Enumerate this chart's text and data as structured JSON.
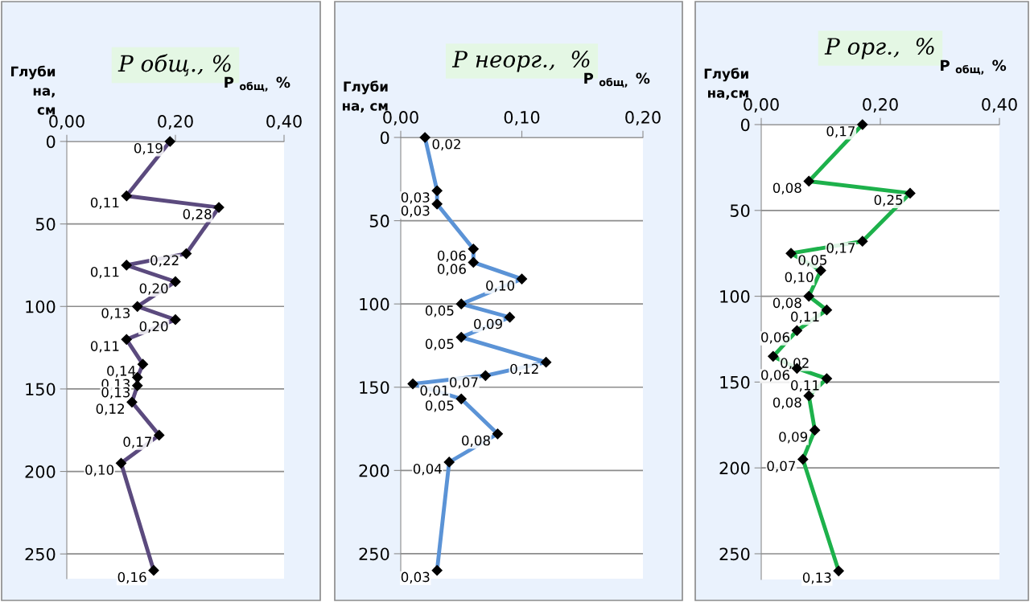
{
  "chart_data": [
    {
      "type": "line",
      "orientation": "horizontal",
      "title": "P общ., %",
      "xlabel": "P $_{общ,}$ %",
      "ylabel": "Глуби\nна,\nсм",
      "xlim": [
        0,
        0.4
      ],
      "xticks": [
        {
          "value": 0,
          "label": "0,00"
        },
        {
          "value": 0.2,
          "label": "0,20"
        },
        {
          "value": 0.4,
          "label": "0,40"
        }
      ],
      "ylim": [
        265,
        0
      ],
      "yticks": [
        0,
        50,
        100,
        150,
        200,
        250
      ],
      "grid": "y",
      "marker": "diamond",
      "line_style": "solid",
      "series": [
        {
          "color": "#5b4a7e",
          "values": [
            0.19,
            0.11,
            0.28,
            0.22,
            0.11,
            0.2,
            0.13,
            0.2,
            0.11,
            0.14,
            0.13,
            0.13,
            0.12,
            0.17,
            0.1,
            0.16
          ],
          "x": [
            0,
            33,
            40,
            68,
            75,
            85,
            100,
            108,
            120,
            135,
            143,
            148,
            158,
            178,
            195,
            260
          ],
          "value_labels": [
            "0,19",
            "0,11",
            "0,28",
            "0,22",
            "0,11",
            "0,20",
            "0,13",
            "0,20",
            "0,11",
            "0,14",
            "0,13",
            "0,13",
            "0,12",
            "0,17",
            "0,10",
            "0,16"
          ]
        }
      ]
    },
    {
      "type": "line",
      "orientation": "horizontal",
      "title": "P неорг.,  %",
      "xlabel": "P $_{общ,}$ %",
      "ylabel": "Глуби\nна, см",
      "xlim": [
        0,
        0.2
      ],
      "xticks": [
        {
          "value": 0,
          "label": "0,00"
        },
        {
          "value": 0.1,
          "label": "0,10"
        },
        {
          "value": 0.2,
          "label": "0,20"
        }
      ],
      "ylim": [
        265,
        0
      ],
      "yticks": [
        0,
        50,
        100,
        150,
        200,
        250
      ],
      "grid": "y",
      "marker": "diamond",
      "line_style": "solid",
      "series": [
        {
          "color": "#5b93d6",
          "values": [
            0.02,
            0.03,
            0.03,
            0.06,
            0.06,
            0.1,
            0.05,
            0.09,
            0.05,
            0.12,
            0.07,
            0.01,
            0.05,
            0.08,
            0.04,
            0.03
          ],
          "x": [
            0,
            32,
            40,
            67,
            75,
            85,
            100,
            108,
            120,
            135,
            143,
            148,
            157,
            178,
            195,
            260
          ],
          "value_labels": [
            "0,02",
            "0,03",
            "0,03",
            "0,06",
            "0,06",
            "0,10",
            "0,05",
            "0,09",
            "0,05",
            "0,12",
            "0,07",
            "0,01",
            "0,05",
            "0,08",
            "0,04",
            "0,03"
          ]
        }
      ]
    },
    {
      "type": "line",
      "orientation": "horizontal",
      "title": "P орг.,  %",
      "xlabel": "P $_{общ,}$ %",
      "ylabel": "Глуби\nна,см",
      "xlim": [
        0,
        0.4
      ],
      "xticks": [
        {
          "value": 0,
          "label": "0,00"
        },
        {
          "value": 0.2,
          "label": "0,20"
        },
        {
          "value": 0.4,
          "label": "0,40"
        }
      ],
      "ylim": [
        265,
        0
      ],
      "yticks": [
        0,
        50,
        100,
        150,
        200,
        250
      ],
      "grid": "y",
      "marker": "diamond",
      "line_style": "solid",
      "series": [
        {
          "color": "#1db14b",
          "values": [
            0.17,
            0.08,
            0.25,
            0.17,
            0.05,
            0.1,
            0.08,
            0.11,
            0.06,
            0.02,
            0.06,
            0.11,
            0.08,
            0.09,
            0.07,
            0.13
          ],
          "x": [
            0,
            33,
            40,
            68,
            75,
            85,
            100,
            108,
            120,
            135,
            142,
            148,
            158,
            178,
            195,
            260
          ],
          "value_labels": [
            "0,17",
            "0,08",
            "0,25",
            "0,17",
            "0,05",
            "0,10",
            "0,08",
            "0,11",
            "0,06",
            "0,02",
            "0,06",
            "0,11",
            "0,08",
            "0,09",
            "0,07",
            "0,13"
          ]
        }
      ]
    }
  ]
}
